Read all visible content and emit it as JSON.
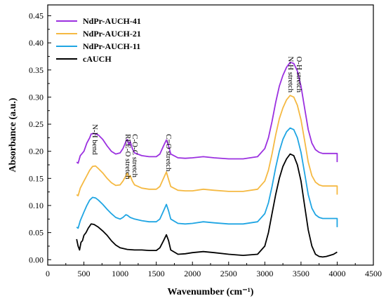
{
  "chart_data": {
    "type": "line",
    "title": "",
    "xlabel": "Wavenumber (cm⁻¹)",
    "ylabel": "Absorbance (a.u.)",
    "xlim": [
      0,
      4500
    ],
    "ylim": [
      -0.01,
      0.47
    ],
    "x_ticks": [
      0,
      500,
      1000,
      1500,
      2000,
      2500,
      3000,
      3500,
      4000,
      4500
    ],
    "y_ticks": [
      0.0,
      0.05,
      0.1,
      0.15,
      0.2,
      0.25,
      0.3,
      0.35,
      0.4,
      0.45
    ],
    "x_tick_labels": [
      "0",
      "500",
      "1000",
      "1500",
      "2000",
      "2500",
      "3000",
      "3500",
      "4000",
      "4500"
    ],
    "y_tick_labels": [
      "0.00",
      "0.05",
      "0.10",
      "0.15",
      "0.20",
      "0.25",
      "0.30",
      "0.35",
      "0.40",
      "0.45"
    ],
    "grid": false,
    "legend_position": "top-left",
    "series": [
      {
        "name": "NdPr-AUCH-41",
        "color": "#9b30e0",
        "points": [
          [
            400,
            0.18
          ],
          [
            420,
            0.178
          ],
          [
            450,
            0.192
          ],
          [
            500,
            0.2
          ],
          [
            540,
            0.215
          ],
          [
            580,
            0.225
          ],
          [
            600,
            0.232
          ],
          [
            640,
            0.233
          ],
          [
            700,
            0.23
          ],
          [
            760,
            0.222
          ],
          [
            820,
            0.21
          ],
          [
            880,
            0.2
          ],
          [
            940,
            0.195
          ],
          [
            1000,
            0.197
          ],
          [
            1040,
            0.205
          ],
          [
            1080,
            0.218
          ],
          [
            1100,
            0.222
          ],
          [
            1120,
            0.212
          ],
          [
            1140,
            0.218
          ],
          [
            1170,
            0.205
          ],
          [
            1200,
            0.197
          ],
          [
            1300,
            0.192
          ],
          [
            1400,
            0.19
          ],
          [
            1500,
            0.19
          ],
          [
            1550,
            0.195
          ],
          [
            1600,
            0.21
          ],
          [
            1640,
            0.221
          ],
          [
            1670,
            0.21
          ],
          [
            1700,
            0.195
          ],
          [
            1800,
            0.188
          ],
          [
            1900,
            0.187
          ],
          [
            2000,
            0.188
          ],
          [
            2150,
            0.19
          ],
          [
            2300,
            0.188
          ],
          [
            2500,
            0.186
          ],
          [
            2700,
            0.186
          ],
          [
            2900,
            0.19
          ],
          [
            3000,
            0.205
          ],
          [
            3050,
            0.225
          ],
          [
            3100,
            0.255
          ],
          [
            3150,
            0.29
          ],
          [
            3200,
            0.32
          ],
          [
            3250,
            0.34
          ],
          [
            3300,
            0.355
          ],
          [
            3350,
            0.364
          ],
          [
            3400,
            0.362
          ],
          [
            3450,
            0.348
          ],
          [
            3500,
            0.32
          ],
          [
            3550,
            0.28
          ],
          [
            3600,
            0.24
          ],
          [
            3650,
            0.215
          ],
          [
            3700,
            0.203
          ],
          [
            3750,
            0.198
          ],
          [
            3800,
            0.196
          ],
          [
            3850,
            0.196
          ],
          [
            3900,
            0.196
          ],
          [
            3950,
            0.196
          ],
          [
            4000,
            0.196
          ],
          [
            4000,
            0.18
          ]
        ]
      },
      {
        "name": "NdPr-AUCH-21",
        "color": "#f5b942",
        "points": [
          [
            400,
            0.12
          ],
          [
            420,
            0.118
          ],
          [
            450,
            0.132
          ],
          [
            500,
            0.145
          ],
          [
            540,
            0.155
          ],
          [
            580,
            0.165
          ],
          [
            620,
            0.172
          ],
          [
            660,
            0.173
          ],
          [
            700,
            0.168
          ],
          [
            760,
            0.16
          ],
          [
            820,
            0.15
          ],
          [
            880,
            0.142
          ],
          [
            940,
            0.137
          ],
          [
            1000,
            0.138
          ],
          [
            1040,
            0.145
          ],
          [
            1080,
            0.155
          ],
          [
            1100,
            0.16
          ],
          [
            1120,
            0.15
          ],
          [
            1140,
            0.155
          ],
          [
            1170,
            0.145
          ],
          [
            1200,
            0.138
          ],
          [
            1300,
            0.132
          ],
          [
            1400,
            0.13
          ],
          [
            1500,
            0.13
          ],
          [
            1550,
            0.135
          ],
          [
            1600,
            0.15
          ],
          [
            1640,
            0.162
          ],
          [
            1670,
            0.148
          ],
          [
            1700,
            0.135
          ],
          [
            1800,
            0.128
          ],
          [
            1900,
            0.127
          ],
          [
            2000,
            0.127
          ],
          [
            2150,
            0.13
          ],
          [
            2300,
            0.128
          ],
          [
            2500,
            0.126
          ],
          [
            2700,
            0.126
          ],
          [
            2900,
            0.13
          ],
          [
            3000,
            0.145
          ],
          [
            3050,
            0.165
          ],
          [
            3100,
            0.195
          ],
          [
            3150,
            0.23
          ],
          [
            3200,
            0.26
          ],
          [
            3250,
            0.28
          ],
          [
            3300,
            0.295
          ],
          [
            3350,
            0.303
          ],
          [
            3400,
            0.3
          ],
          [
            3450,
            0.285
          ],
          [
            3500,
            0.258
          ],
          [
            3550,
            0.22
          ],
          [
            3600,
            0.18
          ],
          [
            3650,
            0.155
          ],
          [
            3700,
            0.143
          ],
          [
            3750,
            0.138
          ],
          [
            3800,
            0.136
          ],
          [
            3850,
            0.136
          ],
          [
            3900,
            0.136
          ],
          [
            3950,
            0.136
          ],
          [
            4000,
            0.136
          ],
          [
            4000,
            0.12
          ]
        ]
      },
      {
        "name": "NdPr-AUCH-11",
        "color": "#1fa5e3",
        "points": [
          [
            400,
            0.06
          ],
          [
            420,
            0.058
          ],
          [
            450,
            0.072
          ],
          [
            500,
            0.088
          ],
          [
            540,
            0.1
          ],
          [
            580,
            0.11
          ],
          [
            620,
            0.115
          ],
          [
            660,
            0.114
          ],
          [
            700,
            0.11
          ],
          [
            760,
            0.102
          ],
          [
            820,
            0.093
          ],
          [
            880,
            0.085
          ],
          [
            940,
            0.078
          ],
          [
            1000,
            0.075
          ],
          [
            1040,
            0.078
          ],
          [
            1080,
            0.083
          ],
          [
            1100,
            0.082
          ],
          [
            1140,
            0.078
          ],
          [
            1200,
            0.075
          ],
          [
            1300,
            0.072
          ],
          [
            1400,
            0.07
          ],
          [
            1500,
            0.07
          ],
          [
            1550,
            0.075
          ],
          [
            1600,
            0.09
          ],
          [
            1640,
            0.102
          ],
          [
            1670,
            0.09
          ],
          [
            1700,
            0.075
          ],
          [
            1800,
            0.067
          ],
          [
            1900,
            0.066
          ],
          [
            2000,
            0.067
          ],
          [
            2150,
            0.07
          ],
          [
            2300,
            0.068
          ],
          [
            2500,
            0.066
          ],
          [
            2700,
            0.066
          ],
          [
            2900,
            0.07
          ],
          [
            3000,
            0.085
          ],
          [
            3050,
            0.105
          ],
          [
            3100,
            0.135
          ],
          [
            3150,
            0.17
          ],
          [
            3200,
            0.2
          ],
          [
            3250,
            0.222
          ],
          [
            3300,
            0.236
          ],
          [
            3350,
            0.243
          ],
          [
            3400,
            0.24
          ],
          [
            3450,
            0.225
          ],
          [
            3500,
            0.198
          ],
          [
            3550,
            0.16
          ],
          [
            3600,
            0.12
          ],
          [
            3650,
            0.095
          ],
          [
            3700,
            0.083
          ],
          [
            3750,
            0.078
          ],
          [
            3800,
            0.076
          ],
          [
            3850,
            0.076
          ],
          [
            3900,
            0.076
          ],
          [
            3950,
            0.076
          ],
          [
            4000,
            0.076
          ],
          [
            4000,
            0.06
          ]
        ]
      },
      {
        "name": "cAUCH",
        "color": "#000000",
        "points": [
          [
            400,
            0.038
          ],
          [
            420,
            0.025
          ],
          [
            440,
            0.018
          ],
          [
            460,
            0.032
          ],
          [
            480,
            0.035
          ],
          [
            500,
            0.045
          ],
          [
            530,
            0.05
          ],
          [
            560,
            0.058
          ],
          [
            600,
            0.066
          ],
          [
            640,
            0.065
          ],
          [
            700,
            0.06
          ],
          [
            760,
            0.053
          ],
          [
            820,
            0.045
          ],
          [
            880,
            0.035
          ],
          [
            940,
            0.027
          ],
          [
            1000,
            0.022
          ],
          [
            1100,
            0.019
          ],
          [
            1200,
            0.018
          ],
          [
            1300,
            0.018
          ],
          [
            1400,
            0.017
          ],
          [
            1500,
            0.017
          ],
          [
            1550,
            0.022
          ],
          [
            1600,
            0.035
          ],
          [
            1640,
            0.046
          ],
          [
            1670,
            0.035
          ],
          [
            1700,
            0.018
          ],
          [
            1800,
            0.01
          ],
          [
            1900,
            0.011
          ],
          [
            2000,
            0.013
          ],
          [
            2150,
            0.015
          ],
          [
            2300,
            0.013
          ],
          [
            2500,
            0.01
          ],
          [
            2700,
            0.008
          ],
          [
            2900,
            0.01
          ],
          [
            3000,
            0.025
          ],
          [
            3050,
            0.05
          ],
          [
            3100,
            0.085
          ],
          [
            3150,
            0.12
          ],
          [
            3200,
            0.15
          ],
          [
            3250,
            0.172
          ],
          [
            3300,
            0.186
          ],
          [
            3350,
            0.195
          ],
          [
            3400,
            0.192
          ],
          [
            3450,
            0.175
          ],
          [
            3500,
            0.145
          ],
          [
            3550,
            0.1
          ],
          [
            3600,
            0.055
          ],
          [
            3650,
            0.025
          ],
          [
            3700,
            0.01
          ],
          [
            3750,
            0.006
          ],
          [
            3800,
            0.005
          ],
          [
            3850,
            0.006
          ],
          [
            3900,
            0.008
          ],
          [
            3950,
            0.01
          ],
          [
            4000,
            0.014
          ]
        ]
      }
    ],
    "annotations": [
      {
        "text": "N-H bend",
        "x": 620,
        "y": 0.25
      },
      {
        "text": "REE-O stretch",
        "x": 1075,
        "y": 0.232
      },
      {
        "text": "C-O-C stretch",
        "x": 1175,
        "y": 0.232
      },
      {
        "text": "C=O stretch",
        "x": 1640,
        "y": 0.232
      },
      {
        "text": "N-H stretch",
        "x": 3325,
        "y": 0.375
      },
      {
        "text": "O-H stretch",
        "x": 3445,
        "y": 0.375
      }
    ]
  }
}
